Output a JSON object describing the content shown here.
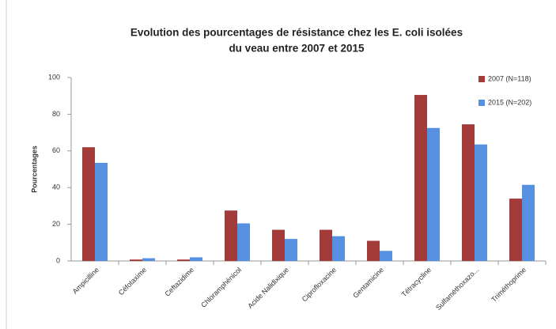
{
  "chart_data": {
    "type": "bar",
    "title": [
      "Evolution des pourcentages de résistance chez les E. coli isolées",
      "du veau entre 2007 et 2015"
    ],
    "y_label": "Pourcentages",
    "categories": [
      "Ampicilline",
      "Céfotaxime",
      "Ceftazidime",
      "Chloramphénicol",
      "Acide Nalidixique",
      "Ciprofloxacine",
      "Gentamicine",
      "Tétracycline",
      "Sulfaméthoxazo...",
      "Triméthoprime"
    ],
    "series": [
      {
        "name": "2007 (N=118)",
        "color": "#a33b3b",
        "values": [
          62,
          0.8,
          0.8,
          27.5,
          17,
          17,
          11,
          90.5,
          74.5,
          34
        ]
      },
      {
        "name": "2015 (N=202)",
        "color": "#5591e0",
        "values": [
          53.5,
          1.5,
          2,
          20.5,
          12,
          13.5,
          5.5,
          72.5,
          63.5,
          41.5
        ]
      }
    ],
    "ylim": [
      0,
      100
    ],
    "yticks": [
      0,
      20,
      40,
      60,
      80,
      100
    ],
    "legend": "right"
  }
}
